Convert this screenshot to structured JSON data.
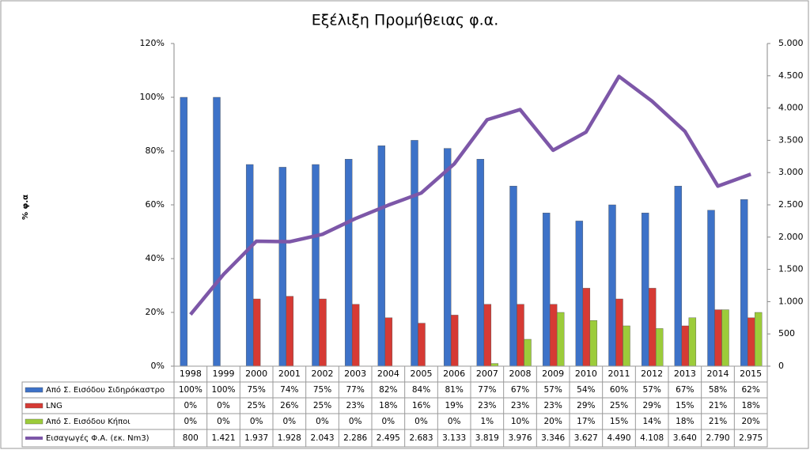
{
  "chart_data": {
    "type": "bar-line",
    "title": "Εξέλιξη Προμήθειας φ.α.",
    "y_label": "% φ.α",
    "categories": [
      "1998",
      "1999",
      "2000",
      "2001",
      "2002",
      "2003",
      "2004",
      "2005",
      "2006",
      "2007",
      "2008",
      "2009",
      "2010",
      "2011",
      "2012",
      "2013",
      "2014",
      "2015"
    ],
    "ylim": [
      0,
      120
    ],
    "yticks": [
      {
        "value": 0,
        "label": "0%"
      },
      {
        "value": 20,
        "label": "20%"
      },
      {
        "value": 40,
        "label": "40%"
      },
      {
        "value": 60,
        "label": "60%"
      },
      {
        "value": 80,
        "label": "80%"
      },
      {
        "value": 100,
        "label": "100%"
      },
      {
        "value": 120,
        "label": "120%"
      }
    ],
    "y2lim": [
      0,
      5000
    ],
    "y2ticks": [
      0,
      500,
      {
        "value": 1000,
        "label": "1.000"
      },
      {
        "value": 1500,
        "label": "1.500"
      },
      {
        "value": 2000,
        "label": "2.000"
      },
      {
        "value": 2500,
        "label": "2.500"
      },
      {
        "value": 3000,
        "label": "3.000"
      },
      {
        "value": 3500,
        "label": "3.500"
      },
      {
        "value": 4000,
        "label": "4.000"
      },
      {
        "value": 4500,
        "label": "4.500"
      },
      {
        "value": 5000,
        "label": "5.000"
      }
    ],
    "grid": false,
    "series": [
      {
        "name": "Από Σ. Εισόδου Σιδηρόκαστρο",
        "color": "#3d72c8",
        "values": [
          100,
          100,
          75,
          74,
          75,
          77,
          82,
          84,
          81,
          77,
          67,
          57,
          54,
          60,
          57,
          67,
          58,
          62
        ],
        "value_labels": [
          "100%",
          "100%",
          "75%",
          "74%",
          "75%",
          "77%",
          "82%",
          "84%",
          "81%",
          "77%",
          "67%",
          "57%",
          "54%",
          "60%",
          "57%",
          "67%",
          "58%",
          "62%"
        ]
      },
      {
        "name": "LNG",
        "color": "#d63a34",
        "values": [
          0,
          0,
          25,
          26,
          25,
          23,
          18,
          16,
          19,
          23,
          23,
          23,
          29,
          25,
          29,
          15,
          21,
          18
        ],
        "value_labels": [
          "0%",
          "0%",
          "25%",
          "26%",
          "25%",
          "23%",
          "18%",
          "16%",
          "19%",
          "23%",
          "23%",
          "23%",
          "29%",
          "25%",
          "29%",
          "15%",
          "21%",
          "18%"
        ]
      },
      {
        "name": "Από Σ. Εισόδου Κήποι",
        "color": "#9ccc3a",
        "values": [
          0,
          0,
          0,
          0,
          0,
          0,
          0,
          0,
          0,
          1,
          10,
          20,
          17,
          15,
          14,
          18,
          21,
          20
        ],
        "value_labels": [
          "0%",
          "0%",
          "0%",
          "0%",
          "0%",
          "0%",
          "0%",
          "0%",
          "0%",
          "1%",
          "10%",
          "20%",
          "17%",
          "15%",
          "14%",
          "18%",
          "21%",
          "20%"
        ]
      },
      {
        "name": "Εισαγωγές Φ.Α. (εκ. Nm3)",
        "color": "#7d57a8",
        "axis": "y2",
        "type": "line",
        "values": [
          800,
          1421,
          1937,
          1928,
          2043,
          2286,
          2495,
          2683,
          3133,
          3819,
          3976,
          3346,
          3627,
          4490,
          4108,
          3640,
          2790,
          2975
        ],
        "value_labels": [
          "800",
          "1.421",
          "1.937",
          "1.928",
          "2.043",
          "2.286",
          "2.495",
          "2.683",
          "3.133",
          "3.819",
          "3.976",
          "3.346",
          "3.627",
          "4.490",
          "4.108",
          "3.640",
          "2.790",
          "2.975"
        ]
      }
    ]
  }
}
